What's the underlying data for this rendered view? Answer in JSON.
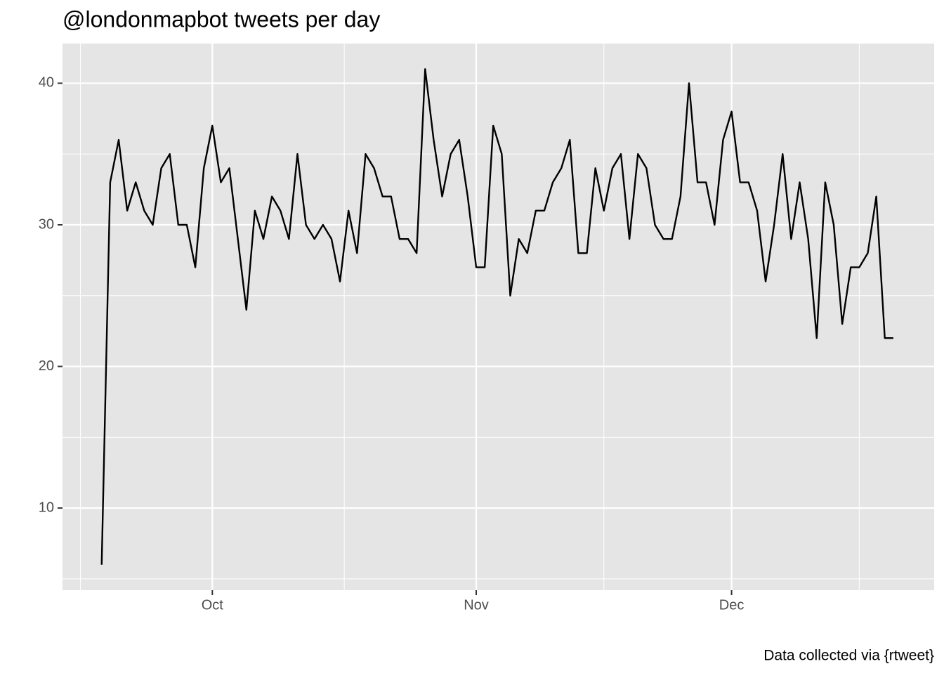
{
  "chart_data": {
    "type": "line",
    "title": "@londonmapbot tweets per day",
    "caption": "Data collected via {rtweet}",
    "x": [
      -13,
      -12,
      -11,
      -10,
      -9,
      -8,
      -7,
      -6,
      -5,
      -4,
      -3,
      -2,
      -1,
      0,
      1,
      2,
      3,
      4,
      5,
      6,
      7,
      8,
      9,
      10,
      11,
      12,
      13,
      14,
      15,
      16,
      17,
      18,
      19,
      20,
      21,
      22,
      23,
      24,
      25,
      26,
      27,
      28,
      29,
      30,
      31,
      32,
      33,
      34,
      35,
      36,
      37,
      38,
      39,
      40,
      41,
      42,
      43,
      44,
      45,
      46,
      47,
      48,
      49,
      50,
      51,
      52,
      53,
      54,
      55,
      56,
      57,
      58,
      59,
      60,
      61,
      62,
      63,
      64,
      65,
      66,
      67,
      68,
      69,
      70,
      71,
      72,
      73,
      74,
      75,
      76,
      77,
      78,
      79,
      80
    ],
    "values": [
      6,
      33,
      36,
      31,
      33,
      31,
      30,
      34,
      35,
      30,
      30,
      27,
      34,
      37,
      33,
      34,
      29,
      24,
      31,
      29,
      32,
      31,
      29,
      35,
      30,
      29,
      30,
      29,
      26,
      31,
      28,
      35,
      34,
      32,
      32,
      29,
      29,
      28,
      41,
      36,
      32,
      35,
      36,
      32,
      27,
      27,
      37,
      35,
      25,
      29,
      28,
      31,
      31,
      33,
      34,
      36,
      28,
      28,
      34,
      31,
      34,
      35,
      29,
      35,
      34,
      30,
      29,
      29,
      32,
      40,
      33,
      33,
      30,
      36,
      38,
      33,
      33,
      31,
      26,
      30,
      35,
      29,
      33,
      29,
      22,
      33,
      30,
      23,
      27,
      27,
      28,
      32,
      22,
      22
    ],
    "color": "#000000",
    "xlim": [
      -17.6,
      84.8
    ],
    "xticks": [
      {
        "value": 0,
        "label": "Oct"
      },
      {
        "value": 31,
        "label": "Nov"
      },
      {
        "value": 61,
        "label": "Dec"
      }
    ],
    "ylim": [
      4.2,
      42.8
    ],
    "yticks": [
      10,
      20,
      30,
      40
    ],
    "grid": true
  }
}
